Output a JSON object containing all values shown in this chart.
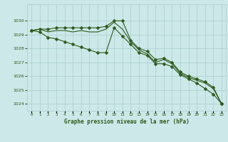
{
  "x": [
    0,
    1,
    2,
    3,
    4,
    5,
    6,
    7,
    8,
    9,
    10,
    11,
    12,
    13,
    14,
    15,
    16,
    17,
    18,
    19,
    20,
    21,
    22,
    23
  ],
  "line_top": [
    1029.3,
    1029.4,
    1029.4,
    1029.5,
    1029.5,
    1029.5,
    1029.5,
    1029.5,
    1029.5,
    1029.6,
    1030.0,
    1030.0,
    1028.6,
    1028.0,
    1027.8,
    1027.2,
    1027.3,
    1027.0,
    1026.3,
    1026.0,
    1025.8,
    1025.6,
    1025.2,
    1024.0
  ],
  "line_mid": [
    1029.3,
    1029.4,
    1029.2,
    1029.3,
    1029.3,
    1029.2,
    1029.3,
    1029.2,
    1029.2,
    1029.4,
    1029.9,
    1029.4,
    1028.5,
    1027.9,
    1027.6,
    1027.0,
    1027.2,
    1026.9,
    1026.2,
    1025.9,
    1025.7,
    1025.5,
    1025.1,
    1024.0
  ],
  "line_bot": [
    1029.3,
    1029.2,
    1028.8,
    1028.7,
    1028.5,
    1028.3,
    1028.1,
    1027.9,
    1027.7,
    1027.7,
    1029.5,
    1028.9,
    1028.3,
    1027.7,
    1027.5,
    1026.9,
    1026.9,
    1026.7,
    1026.1,
    1025.8,
    1025.5,
    1025.1,
    1024.7,
    1024.0
  ],
  "line_color": "#2d5a1b",
  "bg_color": "#cce8e8",
  "grid_color": "#aacece",
  "xlabel": "Graphe pression niveau de la mer (hPa)",
  "ylim": [
    1023.5,
    1031.2
  ],
  "yticks": [
    1024,
    1025,
    1026,
    1027,
    1028,
    1029,
    1030
  ],
  "xtick_labels": [
    "0",
    "1",
    "2",
    "3",
    "4",
    "5",
    "6",
    "7",
    "8",
    "9",
    "10",
    "11",
    "12",
    "13",
    "14",
    "15",
    "16",
    "17",
    "18",
    "19",
    "20",
    "21",
    "22",
    "23"
  ],
  "marker": "D",
  "marker_size": 2.5,
  "line_width": 0.8
}
